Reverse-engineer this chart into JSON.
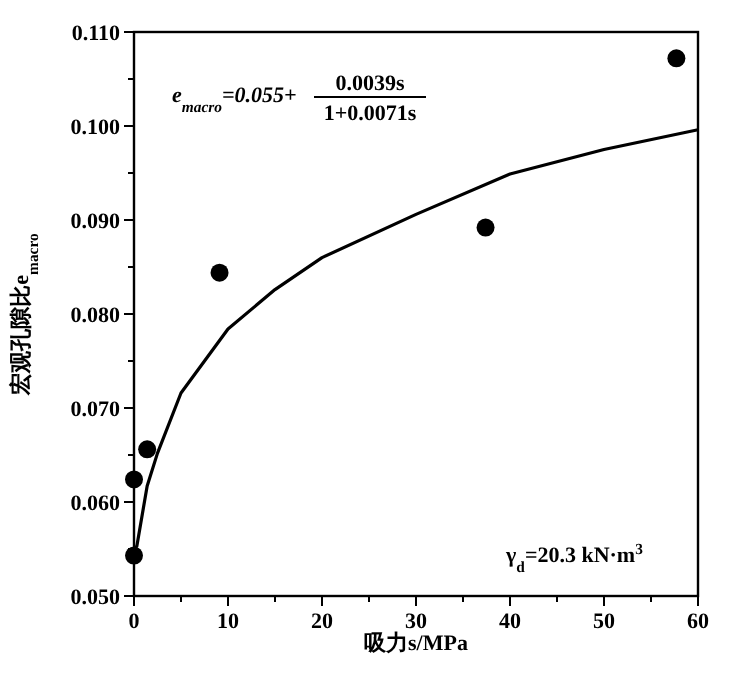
{
  "chart_data": {
    "type": "scatter",
    "xlabel": "吸力s/MPa",
    "ylabel": "宏观孔隙比e$_{macro}$",
    "xlim": [
      0,
      60
    ],
    "ylim": [
      0.05,
      0.11
    ],
    "xticks": [
      0,
      {
        "value": 5,
        "label": null
      },
      10,
      {
        "value": 15,
        "label": null
      },
      20,
      {
        "value": 25,
        "label": null
      },
      30,
      {
        "value": 35,
        "label": null
      },
      40,
      {
        "value": 45,
        "label": null
      },
      50,
      {
        "value": 55,
        "label": null
      },
      60
    ],
    "yticks": [
      {
        "value": 0.05,
        "label": "0.050"
      },
      {
        "value": 0.055,
        "label": null
      },
      {
        "value": 0.06,
        "label": "0.060"
      },
      {
        "value": 0.065,
        "label": null
      },
      {
        "value": 0.07,
        "label": "0.070"
      },
      {
        "value": 0.075,
        "label": null
      },
      {
        "value": 0.08,
        "label": "0.080"
      },
      {
        "value": 0.085,
        "label": null
      },
      {
        "value": 0.09,
        "label": "0.090"
      },
      {
        "value": 0.095,
        "label": null
      },
      {
        "value": 0.1,
        "label": "0.100"
      },
      {
        "value": 0.105,
        "label": null
      },
      {
        "value": 0.11,
        "label": "0.110"
      }
    ],
    "series": [
      {
        "color": "#000000",
        "marker": "circle",
        "x": [
          0,
          0,
          1.4,
          9.1,
          37.4,
          57.7
        ],
        "values": [
          0.0543,
          0.0624,
          0.0656,
          0.0844,
          0.0892,
          0.1072
        ]
      },
      {
        "type": "line",
        "color": "#000000",
        "x": [
          0,
          0.3,
          1.4,
          2.5,
          5,
          10,
          15,
          20,
          30,
          40,
          50,
          60
        ],
        "values": [
          0.055,
          0.0553,
          0.0617,
          0.0652,
          0.0716,
          0.0784,
          0.0826,
          0.086,
          0.0906,
          0.0949,
          0.0975,
          0.0996
        ]
      }
    ],
    "annotations": [
      "e$_{macro}$=0.055+",
      "0.0039s",
      "1+0.0071s",
      "γ$_{d}$=20.3 kN·m$^{3}$"
    ],
    "grid": false
  }
}
